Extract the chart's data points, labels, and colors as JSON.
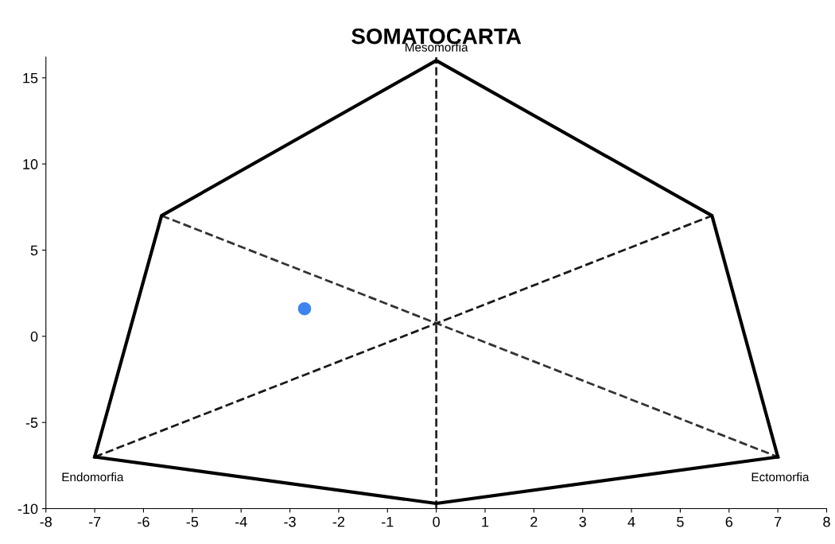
{
  "chart_data": {
    "type": "scatter",
    "title": "SOMATOCARTA",
    "series": [
      {
        "type": "line",
        "color": "#000000",
        "line_style": "solid",
        "marker": "none",
        "x": [
          -7,
          -5.63,
          0,
          5.65,
          7
        ],
        "values": [
          -7,
          7,
          16,
          7,
          -7
        ]
      },
      {
        "type": "line",
        "color": "#000000",
        "line_style": "solid",
        "marker": "none",
        "x": [
          -7,
          0,
          7
        ],
        "values": [
          -7,
          -9.7,
          -7
        ]
      },
      {
        "type": "line",
        "color": "#333333",
        "line_style": "dashed",
        "marker": "none",
        "x": [
          -5.63,
          7
        ],
        "values": [
          7,
          -7
        ]
      },
      {
        "type": "line",
        "color": "#1a1a1a",
        "line_style": "dashed",
        "marker": "none",
        "x": [
          -7,
          5.65
        ],
        "values": [
          -7,
          7
        ]
      },
      {
        "color": "#3d85f0",
        "marker": "circle",
        "x": [
          -2.7
        ],
        "values": [
          1.6
        ]
      }
    ],
    "ref_lines": [
      {
        "axis": "x",
        "value": 0,
        "color": "#262626",
        "line_style": "dashed"
      }
    ],
    "annotations": [
      {
        "text": "Mesomorfia",
        "x": 0,
        "y": 16
      },
      {
        "text": "Endomorfia",
        "x": -7,
        "y": -7
      },
      {
        "text": "Ectomorfia",
        "x": 7,
        "y": -7
      }
    ],
    "xlim": [
      -8,
      8
    ],
    "xticks": [
      -8,
      -7,
      -6,
      -5,
      -4,
      -3,
      -2,
      -1,
      0,
      1,
      2,
      3,
      4,
      5,
      6,
      7,
      8
    ],
    "ylim": [
      -10,
      16.2
    ],
    "yticks": [
      -10,
      -5,
      0,
      5,
      10,
      15
    ],
    "grid": false,
    "legend": false
  }
}
